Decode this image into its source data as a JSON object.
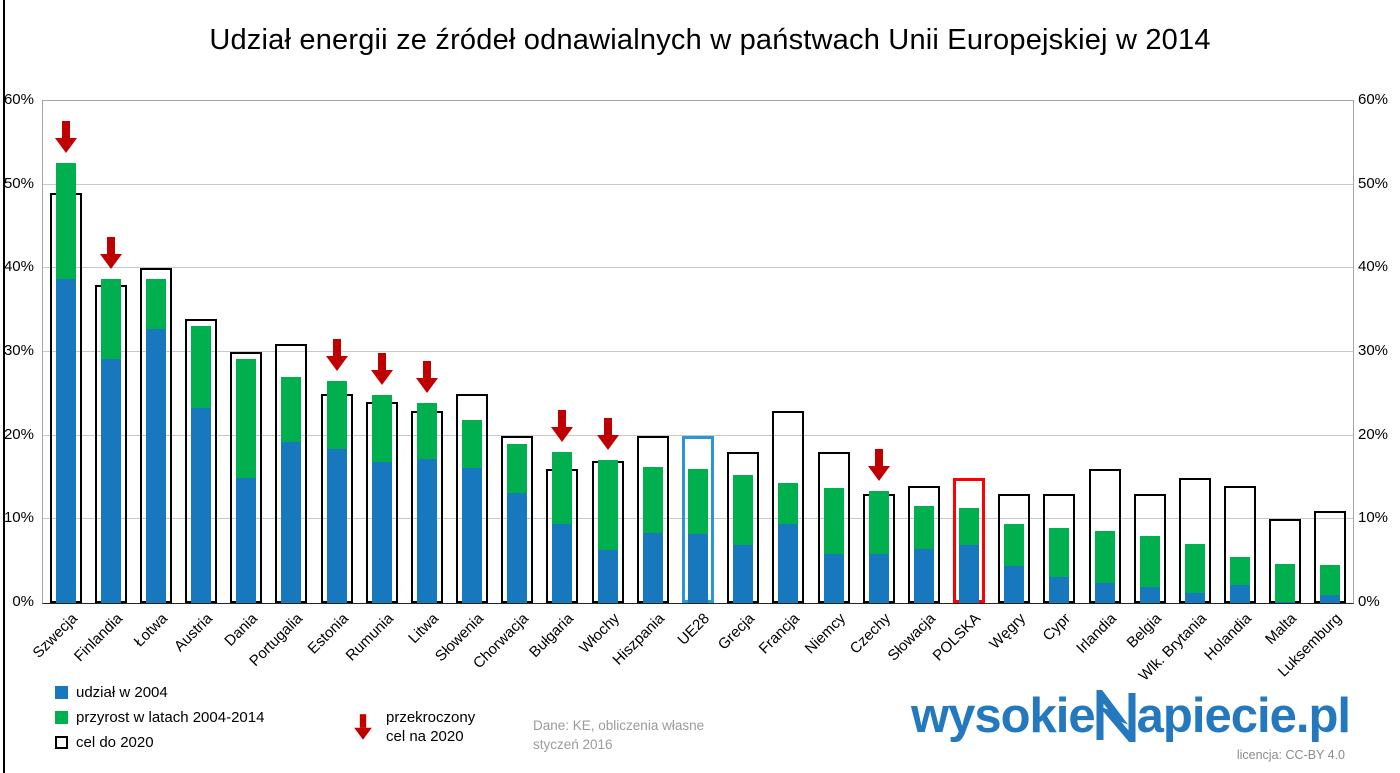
{
  "title": "Udział energii ze źródeł odnawialnych w państwach Unii Europejskiej w 2014",
  "colors": {
    "blue": "#1878be",
    "green": "#00b04e",
    "dark_red": "#c00000",
    "ue28_outline": "#2b96d4",
    "polska_outline": "#ff0000",
    "logo_blue": "#2478bd"
  },
  "chart_data": {
    "type": "bar",
    "stacked": true,
    "title": "Udział energii ze źródeł odnawialnych w państwach Unii Europejskiej w 2014",
    "ylim": [
      0,
      60
    ],
    "ytick_step": 10,
    "ytick_labels": [
      "0%",
      "10%",
      "20%",
      "30%",
      "40%",
      "50%",
      "60%"
    ],
    "grid": true,
    "categories": [
      "Szwecja",
      "Finlandia",
      "Łotwa",
      "Austria",
      "Dania",
      "Portugalia",
      "Estonia",
      "Rumunia",
      "Litwa",
      "Słowenia",
      "Chorwacja",
      "Bułgaria",
      "Włochy",
      "Hiszpania",
      "UE28",
      "Grecja",
      "Francja",
      "Niemcy",
      "Czechy",
      "Słowacja",
      "POLSKA",
      "Węgry",
      "Cypr",
      "Irlandia",
      "Belgia",
      "Wlk. Brytania",
      "Holandia",
      "Malta",
      "Luksemburg"
    ],
    "series": [
      {
        "name": "udział w 2004",
        "color": "#1878be",
        "values": [
          38.7,
          29.2,
          32.8,
          23.3,
          14.9,
          19.2,
          18.4,
          16.8,
          17.2,
          16.1,
          13.2,
          9.4,
          6.3,
          8.4,
          8.3,
          6.9,
          9.4,
          5.8,
          5.9,
          6.4,
          6.9,
          4.4,
          3.1,
          2.4,
          1.9,
          1.2,
          2.1,
          0.1,
          0.9
        ]
      },
      {
        "name": "przyrost w latach 2004-2014",
        "color": "#00b04e",
        "values": [
          13.9,
          9.5,
          5.9,
          9.8,
          14.3,
          7.8,
          8.1,
          8.1,
          6.7,
          5.8,
          5.8,
          8.6,
          10.8,
          7.8,
          7.7,
          8.4,
          4.9,
          8.0,
          7.5,
          5.2,
          4.5,
          5.1,
          5.9,
          6.2,
          6.1,
          5.8,
          3.4,
          4.6,
          3.6
        ]
      }
    ],
    "totals_2014": [
      52.6,
      38.7,
      38.7,
      33.1,
      29.2,
      27.0,
      26.5,
      24.9,
      23.9,
      21.9,
      19.0,
      18.0,
      17.1,
      16.2,
      16.0,
      15.3,
      14.3,
      13.8,
      13.4,
      11.6,
      11.4,
      9.5,
      9.0,
      8.6,
      8.0,
      7.0,
      5.5,
      4.7,
      4.5
    ],
    "targets": {
      "name": "cel do 2020",
      "outline_color": "#000000",
      "values": [
        49,
        38,
        40,
        34,
        30,
        31,
        25,
        24,
        23,
        25,
        20,
        16,
        17,
        20,
        20,
        18,
        23,
        18,
        13,
        14,
        15,
        13,
        13,
        16,
        13,
        15,
        14,
        10,
        11
      ]
    },
    "exceeded_2020_target": [
      "Szwecja",
      "Finlandia",
      "Estonia",
      "Rumunia",
      "Litwa",
      "Bułgaria",
      "Włochy",
      "Czechy"
    ],
    "highlighted_targets": {
      "UE28": "#2b96d4",
      "POLSKA": "#ff0000"
    },
    "arrow_color": "#c00000",
    "legend_position": "bottom-left"
  },
  "legend": {
    "items": [
      {
        "label": "udział w 2004",
        "swatch": "blue"
      },
      {
        "label": "przyrost w latach 2004-2014",
        "swatch": "green"
      },
      {
        "label": "cel do 2020",
        "swatch": "outline"
      }
    ],
    "arrow_item": {
      "line1": "przekroczony",
      "line2": "cel na 2020"
    }
  },
  "note": {
    "line1": "Dane: KE, obliczenia własne",
    "line2": "styczeń 2016"
  },
  "logo": {
    "text_before": "wysokie",
    "text_after": "apiecie.pl",
    "license": "licencja: CC-BY 4.0"
  }
}
